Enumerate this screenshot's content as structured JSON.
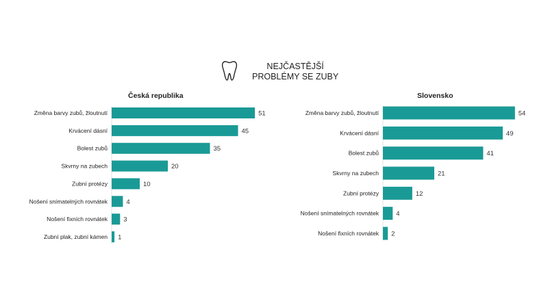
{
  "header": {
    "icon": "tooth-icon",
    "title_line1": "NEJČASTĚJŠÍ",
    "title_line2": "PROBLÉMY SE ZUBY"
  },
  "colors": {
    "bar": "#1a9a96",
    "text": "#222222"
  },
  "chart_data": [
    {
      "type": "bar",
      "orientation": "horizontal",
      "title": "Česká republika",
      "categories": [
        "Změna barvy zubů, žloutnutí",
        "Krvácení dásní",
        "Bolest zubů",
        "Skvrny na zubech",
        "Zubní protézy",
        "Nošení snímatelných rovnátek",
        "Nošení fixních rovnátek",
        "Zubní plak, zubní kámen"
      ],
      "values": [
        51,
        45,
        35,
        20,
        10,
        4,
        3,
        1
      ],
      "xlim": [
        0,
        60
      ],
      "grid": false,
      "legend": "none"
    },
    {
      "type": "bar",
      "orientation": "horizontal",
      "title": "Slovensko",
      "categories": [
        "Změna barvy zubů, žloutnutí",
        "Krvácení dásní",
        "Bolest zubů",
        "Skvrny na zubech",
        "Zubní protézy",
        "Nošení snímatelných rovnátek",
        "Nošení fixních rovnátek"
      ],
      "values": [
        54,
        49,
        41,
        21,
        12,
        4,
        2
      ],
      "xlim": [
        0,
        60
      ],
      "grid": false,
      "legend": "none"
    }
  ]
}
